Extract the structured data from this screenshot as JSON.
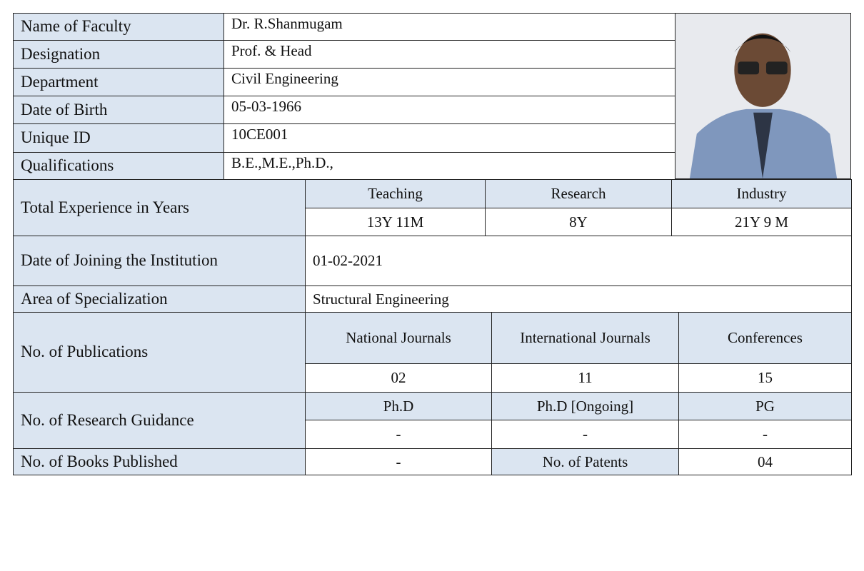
{
  "profile": {
    "rows": [
      {
        "label": "Name of Faculty",
        "value": "Dr. R.Shanmugam"
      },
      {
        "label": "Designation",
        "value": "Prof. & Head"
      },
      {
        "label": "Department",
        "value": "Civil Engineering"
      },
      {
        "label": "Date of Birth",
        "value": "05-03-1966"
      },
      {
        "label": "Unique ID",
        "value": "10CE001"
      },
      {
        "label": "Qualifications",
        "value": "B.E.,M.E.,Ph.D.,"
      }
    ],
    "experience": {
      "label": "Total Experience in Years",
      "headers": [
        "Teaching",
        "Research",
        "Industry"
      ],
      "values": [
        "13Y 11M",
        "8Y",
        "21Y 9 M"
      ]
    },
    "joining": {
      "label": "Date of Joining the Institution",
      "value": "01-02-2021"
    },
    "specialization": {
      "label": "Area of Specialization",
      "value": "Structural Engineering"
    },
    "publications": {
      "label": "No. of Publications",
      "headers": [
        "National Journals",
        "International Journals",
        "Conferences"
      ],
      "values": [
        "02",
        "11",
        "15"
      ]
    },
    "guidance": {
      "label": "No. of Research Guidance",
      "headers": [
        "Ph.D",
        "Ph.D [Ongoing]",
        "PG"
      ],
      "values": [
        "-",
        "-",
        "-"
      ]
    },
    "books": {
      "label": "No. of Books Published",
      "value": "-",
      "patents_label": "No. of Patents",
      "patents_value": "04"
    }
  }
}
